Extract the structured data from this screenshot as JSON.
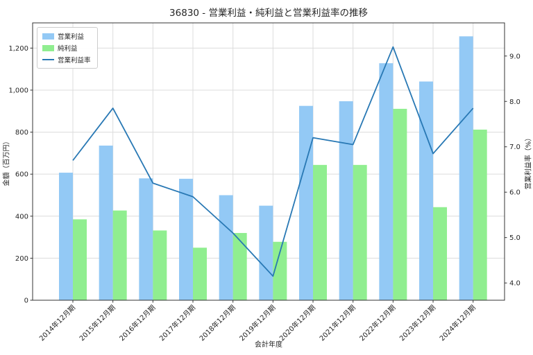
{
  "title": "36830 - 営業利益・純利益と営業利益率の推移",
  "colors": {
    "operating_income_bar": "#93C9F5",
    "net_income_bar": "#90EE90",
    "margin_line": "#2878B4",
    "grid": "#DCDCDC",
    "spine": "#333333",
    "text": "#262626"
  },
  "chart_data": {
    "type": "bar",
    "subtype": "grouped-bars-with-line-overlay",
    "title": "36830 - 営業利益・純利益と営業利益率の推移",
    "xlabel": "会計年度",
    "ylabel_left": "金額（百万円）",
    "ylabel_right": "営業利益率（%）",
    "grid": true,
    "legend_position": "upper-left",
    "categories": [
      "2014年12月期",
      "2015年12月期",
      "2016年12月期",
      "2017年12月期",
      "2018年12月期",
      "2019年12月期",
      "2020年12月期",
      "2021年12月期",
      "2022年12月期",
      "2023年12月期",
      "2024年12月期"
    ],
    "series": [
      {
        "name": "営業利益",
        "kind": "bar",
        "axis": "left",
        "color": "#93C9F5",
        "values": [
          607,
          736,
          580,
          578,
          500,
          450,
          925,
          947,
          1128,
          1041,
          1256
        ]
      },
      {
        "name": "純利益",
        "kind": "bar",
        "axis": "left",
        "color": "#90EE90",
        "values": [
          385,
          427,
          332,
          250,
          320,
          278,
          644,
          644,
          911,
          443,
          812
        ]
      },
      {
        "name": "営業利益率",
        "kind": "line",
        "axis": "right",
        "color": "#2878B4",
        "values": [
          6.7,
          7.85,
          6.2,
          5.9,
          5.1,
          4.15,
          7.2,
          7.05,
          9.2,
          6.85,
          7.85
        ]
      }
    ],
    "left_axis": {
      "ticks": [
        0,
        200,
        400,
        600,
        800,
        1000,
        1200
      ],
      "labels": [
        "0",
        "200",
        "400",
        "600",
        "800",
        "1,000",
        "1,200"
      ],
      "lim": [
        0,
        1320
      ]
    },
    "right_axis": {
      "ticks": [
        4,
        5,
        6,
        7,
        8,
        9
      ],
      "labels": [
        "4.0",
        "5.0",
        "6.0",
        "7.0",
        "8.0",
        "9.0"
      ],
      "lim": [
        3.62,
        9.73
      ]
    }
  }
}
